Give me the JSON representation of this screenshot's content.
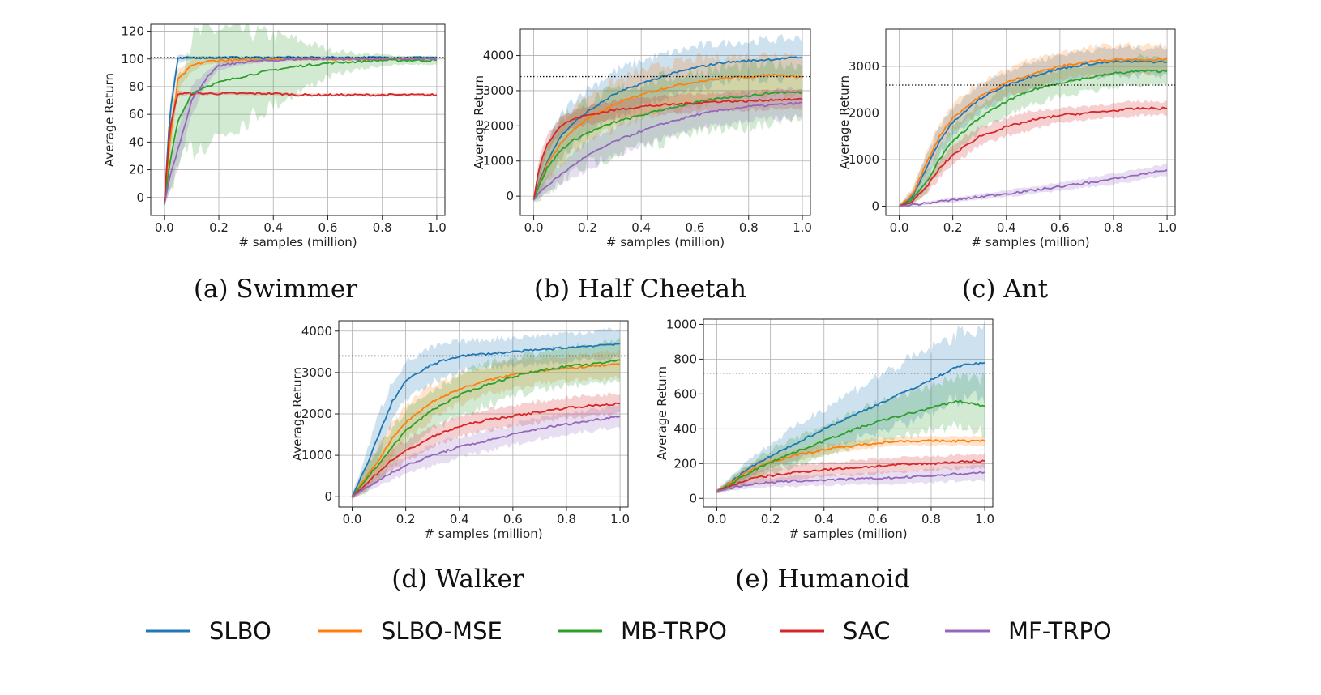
{
  "legend": {
    "items": [
      {
        "name": "SLBO",
        "color": "#1f77b4"
      },
      {
        "name": "SLBO-MSE",
        "color": "#ff7f0e"
      },
      {
        "name": "MB-TRPO",
        "color": "#2ca02c"
      },
      {
        "name": "SAC",
        "color": "#d62728"
      },
      {
        "name": "MF-TRPO",
        "color": "#9467bd"
      }
    ]
  },
  "chart_data": [
    {
      "type": "line",
      "caption": "(a) Swimmer",
      "xlabel": "# samples (million)",
      "ylabel": "Average Return",
      "xlim": [
        -0.05,
        1.03
      ],
      "ylim": [
        -13,
        125
      ],
      "xticks": [
        0.0,
        0.2,
        0.4,
        0.6,
        0.8,
        1.0
      ],
      "yticks": [
        0,
        20,
        40,
        60,
        80,
        100,
        120
      ],
      "reference_line": 101,
      "grid": true,
      "x": [
        0.0,
        0.02,
        0.05,
        0.1,
        0.15,
        0.2,
        0.3,
        0.4,
        0.5,
        0.6,
        0.7,
        0.8,
        0.9,
        1.0
      ],
      "series": [
        {
          "name": "SLBO",
          "values": [
            -5,
            60,
            100,
            101,
            101,
            101,
            101,
            101,
            101,
            101,
            101,
            101,
            101,
            101
          ],
          "spread": [
            1,
            10,
            3,
            1,
            1,
            1,
            1,
            1,
            1,
            1,
            1,
            1,
            1,
            1
          ]
        },
        {
          "name": "SLBO-MSE",
          "values": [
            -5,
            40,
            85,
            95,
            98,
            99,
            99,
            100,
            100,
            100,
            100,
            100,
            100,
            100
          ],
          "spread": [
            1,
            12,
            8,
            4,
            2,
            2,
            2,
            1,
            1,
            1,
            1,
            1,
            1,
            1
          ]
        },
        {
          "name": "MB-TRPO",
          "values": [
            -5,
            25,
            55,
            75,
            80,
            83,
            88,
            92,
            95,
            97,
            98,
            99,
            99,
            99
          ],
          "spread": [
            1,
            20,
            35,
            40,
            40,
            38,
            32,
            25,
            18,
            10,
            6,
            4,
            3,
            3
          ]
        },
        {
          "name": "SAC",
          "values": [
            -3,
            50,
            75,
            75,
            75,
            75,
            75,
            75,
            74,
            74,
            74,
            74,
            74,
            74
          ],
          "spread": [
            1,
            5,
            2,
            1,
            1,
            1,
            1,
            1,
            1,
            1,
            1,
            1,
            1,
            1
          ]
        },
        {
          "name": "MF-TRPO",
          "values": [
            -5,
            15,
            35,
            70,
            85,
            95,
            98,
            99,
            100,
            100,
            100,
            100,
            100,
            100
          ],
          "spread": [
            1,
            10,
            15,
            10,
            5,
            3,
            2,
            1,
            1,
            1,
            1,
            1,
            1,
            1
          ]
        }
      ]
    },
    {
      "type": "line",
      "caption": "(b) Half Cheetah",
      "xlabel": "# samples (million)",
      "ylabel": "Average Return",
      "xlim": [
        -0.05,
        1.03
      ],
      "ylim": [
        -550,
        4750
      ],
      "xticks": [
        0.0,
        0.2,
        0.4,
        0.6,
        0.8,
        1.0
      ],
      "yticks": [
        0,
        1000,
        2000,
        3000,
        4000
      ],
      "reference_line": 3400,
      "grid": true,
      "x": [
        0.0,
        0.02,
        0.05,
        0.1,
        0.15,
        0.2,
        0.3,
        0.4,
        0.5,
        0.6,
        0.7,
        0.8,
        0.9,
        1.0
      ],
      "series": [
        {
          "name": "SLBO",
          "values": [
            -100,
            400,
            1000,
            1700,
            2100,
            2400,
            2900,
            3200,
            3450,
            3650,
            3800,
            3850,
            3900,
            3950
          ],
          "spread": [
            50,
            300,
            500,
            600,
            650,
            650,
            650,
            650,
            600,
            600,
            550,
            550,
            550,
            550
          ]
        },
        {
          "name": "SLBO-MSE",
          "values": [
            -100,
            350,
            900,
            1500,
            1900,
            2200,
            2600,
            2900,
            3100,
            3250,
            3350,
            3400,
            3450,
            3400
          ],
          "spread": [
            50,
            300,
            500,
            600,
            650,
            650,
            650,
            650,
            650,
            650,
            600,
            600,
            600,
            600
          ]
        },
        {
          "name": "MB-TRPO",
          "values": [
            -100,
            300,
            800,
            1300,
            1600,
            1800,
            2100,
            2300,
            2500,
            2650,
            2800,
            2850,
            2950,
            2950
          ],
          "spread": [
            50,
            400,
            800,
            900,
            900,
            900,
            900,
            900,
            900,
            850,
            850,
            850,
            800,
            800
          ]
        },
        {
          "name": "SAC",
          "values": [
            -100,
            800,
            1500,
            2000,
            2200,
            2300,
            2450,
            2550,
            2600,
            2650,
            2700,
            2700,
            2750,
            2750
          ],
          "spread": [
            50,
            250,
            250,
            250,
            250,
            250,
            250,
            250,
            250,
            250,
            250,
            250,
            250,
            250
          ]
        },
        {
          "name": "MF-TRPO",
          "values": [
            -100,
            100,
            300,
            600,
            900,
            1150,
            1550,
            1850,
            2100,
            2300,
            2450,
            2550,
            2600,
            2650
          ],
          "spread": [
            50,
            150,
            250,
            300,
            350,
            400,
            400,
            400,
            400,
            400,
            400,
            400,
            400,
            400
          ]
        }
      ]
    },
    {
      "type": "line",
      "caption": "(c) Ant",
      "xlabel": "# samples (million)",
      "ylabel": "Average Return",
      "xlim": [
        -0.05,
        1.03
      ],
      "ylim": [
        -200,
        3800
      ],
      "xticks": [
        0.0,
        0.2,
        0.4,
        0.6,
        0.8,
        1.0
      ],
      "yticks": [
        0,
        1000,
        2000,
        3000
      ],
      "reference_line": 2600,
      "grid": true,
      "x": [
        0.0,
        0.05,
        0.1,
        0.15,
        0.2,
        0.3,
        0.4,
        0.5,
        0.6,
        0.7,
        0.8,
        0.9,
        1.0
      ],
      "series": [
        {
          "name": "SLBO",
          "values": [
            0,
            200,
            800,
            1400,
            1800,
            2300,
            2600,
            2800,
            2950,
            3050,
            3100,
            3100,
            3100
          ],
          "spread": [
            20,
            150,
            250,
            300,
            300,
            300,
            300,
            300,
            300,
            300,
            300,
            300,
            300
          ]
        },
        {
          "name": "SLBO-MSE",
          "values": [
            0,
            250,
            900,
            1500,
            1900,
            2350,
            2650,
            2850,
            3000,
            3100,
            3150,
            3150,
            3150
          ],
          "spread": [
            20,
            150,
            250,
            300,
            300,
            300,
            300,
            300,
            300,
            300,
            300,
            300,
            300
          ]
        },
        {
          "name": "MB-TRPO",
          "values": [
            0,
            150,
            500,
            1000,
            1400,
            1900,
            2250,
            2500,
            2650,
            2750,
            2850,
            2900,
            2900
          ],
          "spread": [
            20,
            100,
            200,
            250,
            300,
            300,
            300,
            300,
            300,
            300,
            300,
            300,
            300
          ]
        },
        {
          "name": "SAC",
          "values": [
            0,
            100,
            400,
            800,
            1100,
            1500,
            1700,
            1850,
            1950,
            2000,
            2050,
            2100,
            2100
          ],
          "spread": [
            20,
            50,
            150,
            200,
            200,
            200,
            200,
            200,
            150,
            150,
            150,
            150,
            150
          ]
        },
        {
          "name": "MF-TRPO",
          "values": [
            0,
            30,
            60,
            100,
            130,
            200,
            270,
            340,
            420,
            500,
            580,
            680,
            780
          ],
          "spread": [
            10,
            20,
            30,
            40,
            50,
            60,
            70,
            80,
            90,
            100,
            110,
            120,
            130
          ]
        }
      ]
    },
    {
      "type": "line",
      "caption": "(d) Walker",
      "xlabel": "# samples (million)",
      "ylabel": "Average Return",
      "xlim": [
        -0.05,
        1.03
      ],
      "ylim": [
        -250,
        4250
      ],
      "xticks": [
        0.0,
        0.2,
        0.4,
        0.6,
        0.8,
        1.0
      ],
      "yticks": [
        0,
        1000,
        2000,
        3000,
        4000
      ],
      "reference_line": 3400,
      "grid": true,
      "x": [
        0.0,
        0.05,
        0.1,
        0.15,
        0.2,
        0.3,
        0.4,
        0.5,
        0.6,
        0.7,
        0.8,
        0.9,
        1.0
      ],
      "series": [
        {
          "name": "SLBO",
          "values": [
            0,
            700,
            1500,
            2300,
            2800,
            3200,
            3400,
            3450,
            3500,
            3550,
            3600,
            3650,
            3700
          ],
          "spread": [
            50,
            300,
            500,
            500,
            450,
            400,
            350,
            350,
            350,
            350,
            350,
            350,
            350
          ]
        },
        {
          "name": "SLBO-MSE",
          "values": [
            0,
            450,
            900,
            1400,
            1800,
            2300,
            2600,
            2800,
            2950,
            3050,
            3100,
            3150,
            3200
          ],
          "spread": [
            50,
            250,
            350,
            400,
            400,
            400,
            350,
            350,
            350,
            300,
            300,
            300,
            300
          ]
        },
        {
          "name": "MB-TRPO",
          "values": [
            0,
            400,
            800,
            1200,
            1600,
            2100,
            2450,
            2700,
            2900,
            3050,
            3150,
            3200,
            3300
          ],
          "spread": [
            50,
            300,
            450,
            500,
            500,
            500,
            500,
            500,
            450,
            450,
            450,
            450,
            450
          ]
        },
        {
          "name": "SAC",
          "values": [
            0,
            300,
            600,
            900,
            1100,
            1450,
            1700,
            1850,
            1950,
            2050,
            2150,
            2200,
            2250
          ],
          "spread": [
            50,
            150,
            200,
            250,
            250,
            250,
            250,
            250,
            250,
            250,
            250,
            250,
            250
          ]
        },
        {
          "name": "MF-TRPO",
          "values": [
            0,
            200,
            400,
            600,
            750,
            1000,
            1200,
            1350,
            1500,
            1650,
            1750,
            1850,
            1950
          ],
          "spread": [
            50,
            100,
            150,
            200,
            200,
            250,
            250,
            250,
            250,
            250,
            250,
            250,
            250
          ]
        }
      ]
    },
    {
      "type": "line",
      "caption": "(e) Humanoid",
      "xlabel": "# samples (million)",
      "ylabel": "Average Return",
      "xlim": [
        -0.05,
        1.03
      ],
      "ylim": [
        -50,
        1030
      ],
      "xticks": [
        0.0,
        0.2,
        0.4,
        0.6,
        0.8,
        1.0
      ],
      "yticks": [
        0,
        200,
        400,
        600,
        800,
        1000
      ],
      "reference_line": 720,
      "grid": true,
      "x": [
        0.0,
        0.05,
        0.1,
        0.15,
        0.2,
        0.3,
        0.4,
        0.5,
        0.6,
        0.7,
        0.8,
        0.9,
        1.0
      ],
      "series": [
        {
          "name": "SLBO",
          "values": [
            40,
            90,
            150,
            200,
            240,
            320,
            400,
            470,
            540,
            610,
            680,
            760,
            780
          ],
          "spread": [
            10,
            30,
            50,
            60,
            70,
            100,
            120,
            140,
            160,
            170,
            180,
            190,
            200
          ]
        },
        {
          "name": "SLBO-MSE",
          "values": [
            40,
            90,
            140,
            180,
            210,
            250,
            280,
            300,
            320,
            330,
            330,
            330,
            330
          ],
          "spread": [
            10,
            20,
            30,
            35,
            35,
            35,
            30,
            30,
            25,
            25,
            25,
            25,
            25
          ]
        },
        {
          "name": "MB-TRPO",
          "values": [
            40,
            80,
            130,
            170,
            210,
            270,
            330,
            390,
            440,
            480,
            520,
            560,
            530
          ],
          "spread": [
            10,
            30,
            50,
            60,
            70,
            80,
            90,
            100,
            110,
            120,
            130,
            140,
            150
          ]
        },
        {
          "name": "SAC",
          "values": [
            40,
            70,
            100,
            120,
            130,
            150,
            165,
            175,
            185,
            195,
            200,
            210,
            215
          ],
          "spread": [
            10,
            20,
            30,
            35,
            40,
            40,
            40,
            40,
            40,
            40,
            40,
            40,
            40
          ]
        },
        {
          "name": "MF-TRPO",
          "values": [
            40,
            60,
            75,
            85,
            90,
            100,
            105,
            110,
            115,
            120,
            130,
            140,
            150
          ],
          "spread": [
            10,
            15,
            20,
            25,
            25,
            30,
            30,
            30,
            35,
            35,
            40,
            40,
            45
          ]
        }
      ]
    }
  ]
}
